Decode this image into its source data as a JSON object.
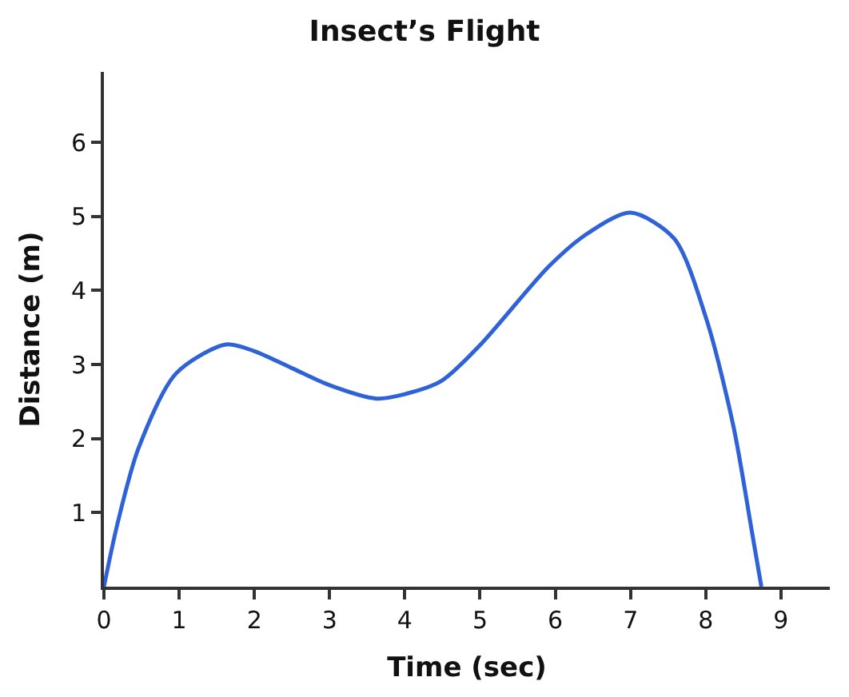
{
  "chart_data": {
    "type": "line",
    "title": "Insect’s Flight",
    "xlabel": "Time (sec)",
    "ylabel": "Distance (m)",
    "x": [
      0,
      0.18,
      0.46,
      0.96,
      1.62,
      2.0,
      2.5,
      3.0,
      3.62,
      4.0,
      4.49,
      4.99,
      5.92,
      6.43,
      7.0,
      7.58,
      8.01,
      8.37,
      8.62,
      8.74
    ],
    "series": [
      {
        "color": "#2f62d6",
        "values": [
          0,
          0.85,
          1.87,
          2.88,
          3.27,
          3.18,
          2.95,
          2.72,
          2.54,
          2.6,
          2.78,
          3.25,
          4.33,
          4.77,
          5.05,
          4.7,
          3.61,
          2.16,
          0.71,
          0
        ]
      }
    ],
    "xlim": [
      0,
      9.65
    ],
    "ylim": [
      0,
      6.95
    ],
    "xticks": [
      0,
      1,
      2,
      3,
      4,
      5,
      6,
      7,
      8,
      9
    ],
    "yticks": [
      1,
      2,
      3,
      4,
      5,
      6
    ],
    "line_style": "solid"
  }
}
